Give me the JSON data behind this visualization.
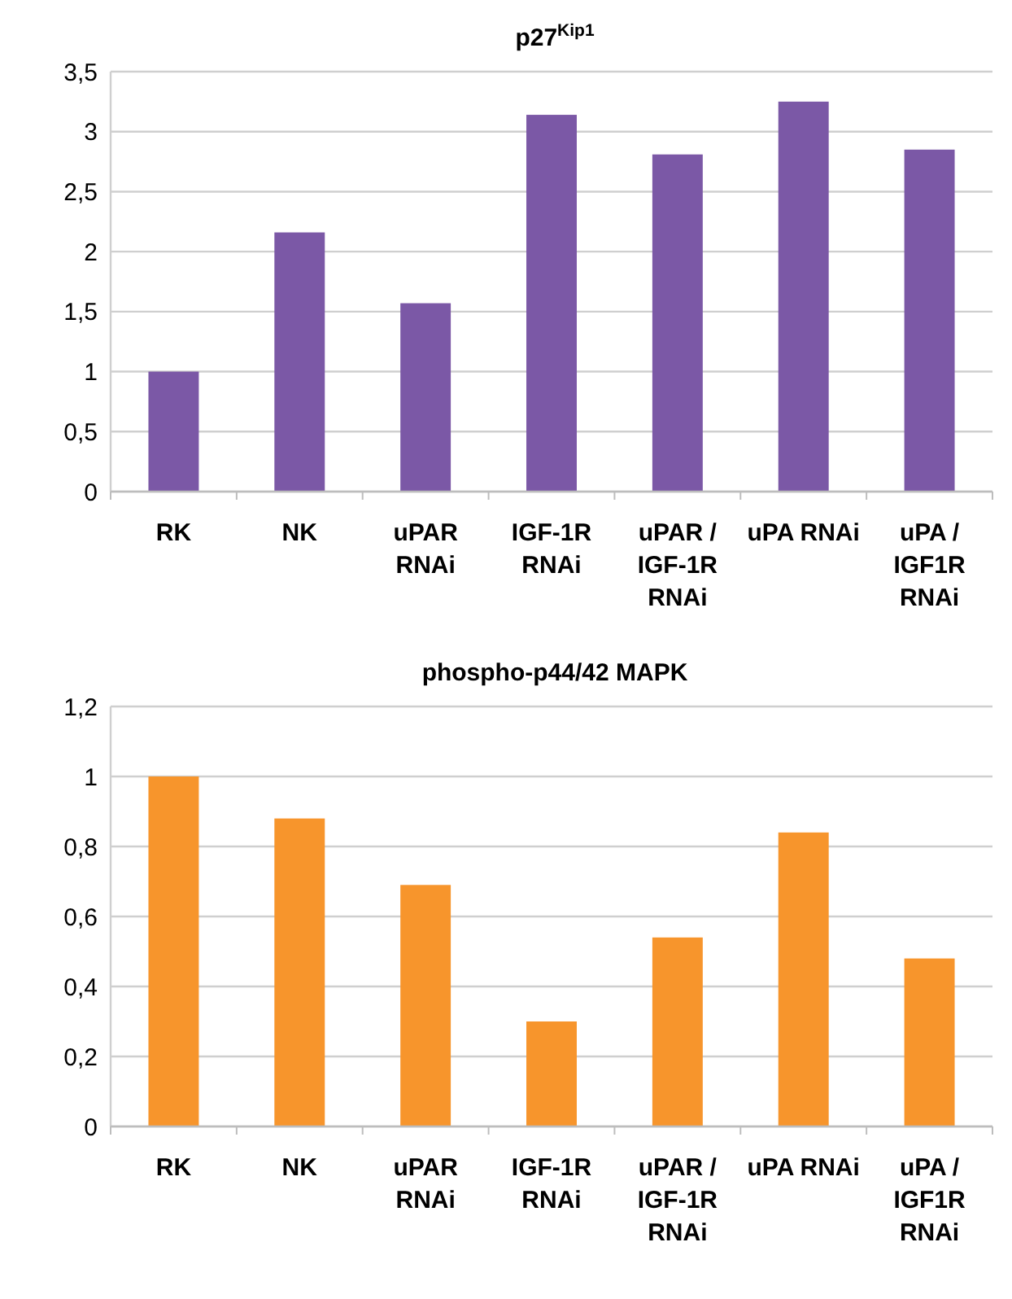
{
  "chart_data": [
    {
      "type": "bar",
      "title": "p27$^{Kip1}$",
      "categories": [
        "RK",
        "NK",
        "uPAR RNAi",
        "IGF-1R RNAi",
        "uPAR / IGF-1R RNAi",
        "uPA RNAi",
        "uPA / IGF1R RNAi"
      ],
      "values": [
        1.0,
        2.16,
        1.57,
        3.14,
        2.81,
        3.25,
        2.85
      ],
      "color": "#7b58a6",
      "ylim": [
        0,
        3.5
      ],
      "yticks": [
        0,
        {
          "value": 0.5,
          "label": "0,5"
        },
        1,
        {
          "value": 1.5,
          "label": "1,5"
        },
        2,
        {
          "value": 2.5,
          "label": "2,5"
        },
        3,
        {
          "value": 3.5,
          "label": "3,5"
        }
      ],
      "grid": "y"
    },
    {
      "type": "bar",
      "title": "phospho-p44/42 MAPK",
      "categories": [
        "RK",
        "NK",
        "uPAR RNAi",
        "IGF-1R RNAi",
        "uPAR / IGF-1R RNAi",
        "uPA RNAi",
        "uPA / IGF1R RNAi"
      ],
      "values": [
        1.0,
        0.88,
        0.69,
        0.3,
        0.54,
        0.84,
        0.48
      ],
      "color": "#f7952c",
      "ylim": [
        0,
        1.2
      ],
      "yticks": [
        0,
        {
          "value": 0.2,
          "label": "0,2"
        },
        {
          "value": 0.4,
          "label": "0,4"
        },
        {
          "value": 0.6,
          "label": "0,6"
        },
        {
          "value": 0.8,
          "label": "0,8"
        },
        1,
        {
          "value": 1.2,
          "label": "1,2"
        }
      ],
      "grid": "y"
    }
  ]
}
